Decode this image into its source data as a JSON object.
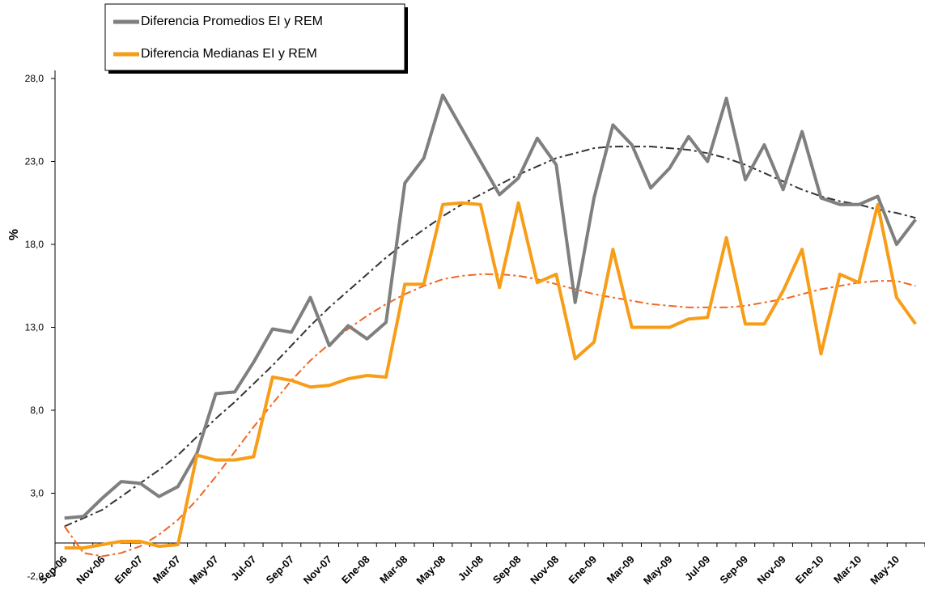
{
  "chart_data": {
    "type": "line",
    "y_label": "%",
    "categories": [
      "Sep-06",
      null,
      "Nov-06",
      null,
      "Ene-07",
      null,
      "Mar-07",
      null,
      "May-07",
      null,
      "Jul-07",
      null,
      "Sep-07",
      null,
      "Nov-07",
      null,
      "Ene-08",
      null,
      "Mar-08",
      null,
      "May-08",
      null,
      "Jul-08",
      null,
      "Sep-08",
      null,
      "Nov-08",
      null,
      "Ene-09",
      null,
      "Mar-09",
      null,
      "May-09",
      null,
      "Jul-09",
      null,
      "Sep-09",
      null,
      "Nov-09",
      null,
      "Ene-10",
      null,
      "Mar-10",
      null,
      "May-10",
      null
    ],
    "series": [
      {
        "name": "Diferencia Promedios EI y REM",
        "color": "#7f7f7f",
        "values": [
          1.5,
          1.6,
          2.7,
          3.7,
          3.6,
          2.8,
          3.4,
          5.4,
          9.0,
          9.1,
          10.9,
          12.9,
          12.7,
          14.8,
          11.9,
          13.1,
          12.3,
          13.3,
          21.7,
          23.2,
          27.0,
          25.0,
          23.0,
          21.0,
          22.0,
          24.4,
          22.8,
          14.5,
          20.8,
          25.2,
          24.0,
          21.4,
          22.6,
          24.5,
          23.0,
          26.8,
          21.9,
          24.0,
          21.3,
          24.8,
          20.8,
          20.4,
          20.4,
          20.9,
          18.0,
          19.5
        ]
      },
      {
        "name": "Diferencia Medianas EI y REM",
        "color": "#f79d17",
        "values": [
          -0.3,
          -0.3,
          -0.1,
          0.1,
          0.1,
          -0.2,
          -0.1,
          5.3,
          5.0,
          5.0,
          5.2,
          10.0,
          9.8,
          9.4,
          9.5,
          9.9,
          10.1,
          10.0,
          15.6,
          15.6,
          20.4,
          20.5,
          20.4,
          15.4,
          20.5,
          15.7,
          16.2,
          11.1,
          12.1,
          17.7,
          13.0,
          13.0,
          13.0,
          13.5,
          13.6,
          18.4,
          13.2,
          13.2,
          15.2,
          17.7,
          11.4,
          16.2,
          15.7,
          20.4,
          14.8,
          13.2
        ]
      }
    ],
    "trendlines": [
      {
        "color": "#333333",
        "style": "dash-dot",
        "values": [
          1.0,
          1.5,
          2.0,
          2.8,
          3.6,
          4.4,
          5.3,
          6.4,
          7.5,
          8.5,
          9.6,
          10.7,
          11.9,
          13.1,
          14.2,
          15.2,
          16.2,
          17.2,
          18.1,
          18.9,
          19.7,
          20.4,
          21.0,
          21.6,
          22.2,
          22.7,
          23.2,
          23.5,
          23.8,
          23.9,
          23.9,
          23.9,
          23.8,
          23.7,
          23.5,
          23.2,
          22.8,
          22.3,
          21.8,
          21.3,
          20.9,
          20.6,
          20.4,
          20.1,
          19.9,
          19.6
        ]
      },
      {
        "color": "#f26522",
        "style": "dash-dot",
        "values": [
          1.0,
          -0.6,
          -0.8,
          -0.6,
          -0.2,
          0.5,
          1.4,
          2.6,
          4.0,
          5.5,
          7.0,
          8.4,
          9.8,
          11.0,
          12.0,
          12.9,
          13.7,
          14.4,
          15.0,
          15.5,
          15.9,
          16.1,
          16.2,
          16.2,
          16.1,
          15.9,
          15.6,
          15.3,
          15.0,
          14.8,
          14.6,
          14.4,
          14.3,
          14.2,
          14.2,
          14.2,
          14.3,
          14.5,
          14.7,
          15.0,
          15.3,
          15.5,
          15.7,
          15.8,
          15.8,
          15.5
        ]
      }
    ],
    "ylim": [
      -2,
      28
    ],
    "yticks": [
      {
        "value": -2,
        "label": "-2,0"
      },
      {
        "value": 3,
        "label": "3,0"
      },
      {
        "value": 8,
        "label": "8,0"
      },
      {
        "value": 13,
        "label": "13,0"
      },
      {
        "value": 18,
        "label": "18,0"
      },
      {
        "value": 23,
        "label": "23,0"
      },
      {
        "value": 28,
        "label": "28,0"
      }
    ],
    "legend": "top-left"
  }
}
